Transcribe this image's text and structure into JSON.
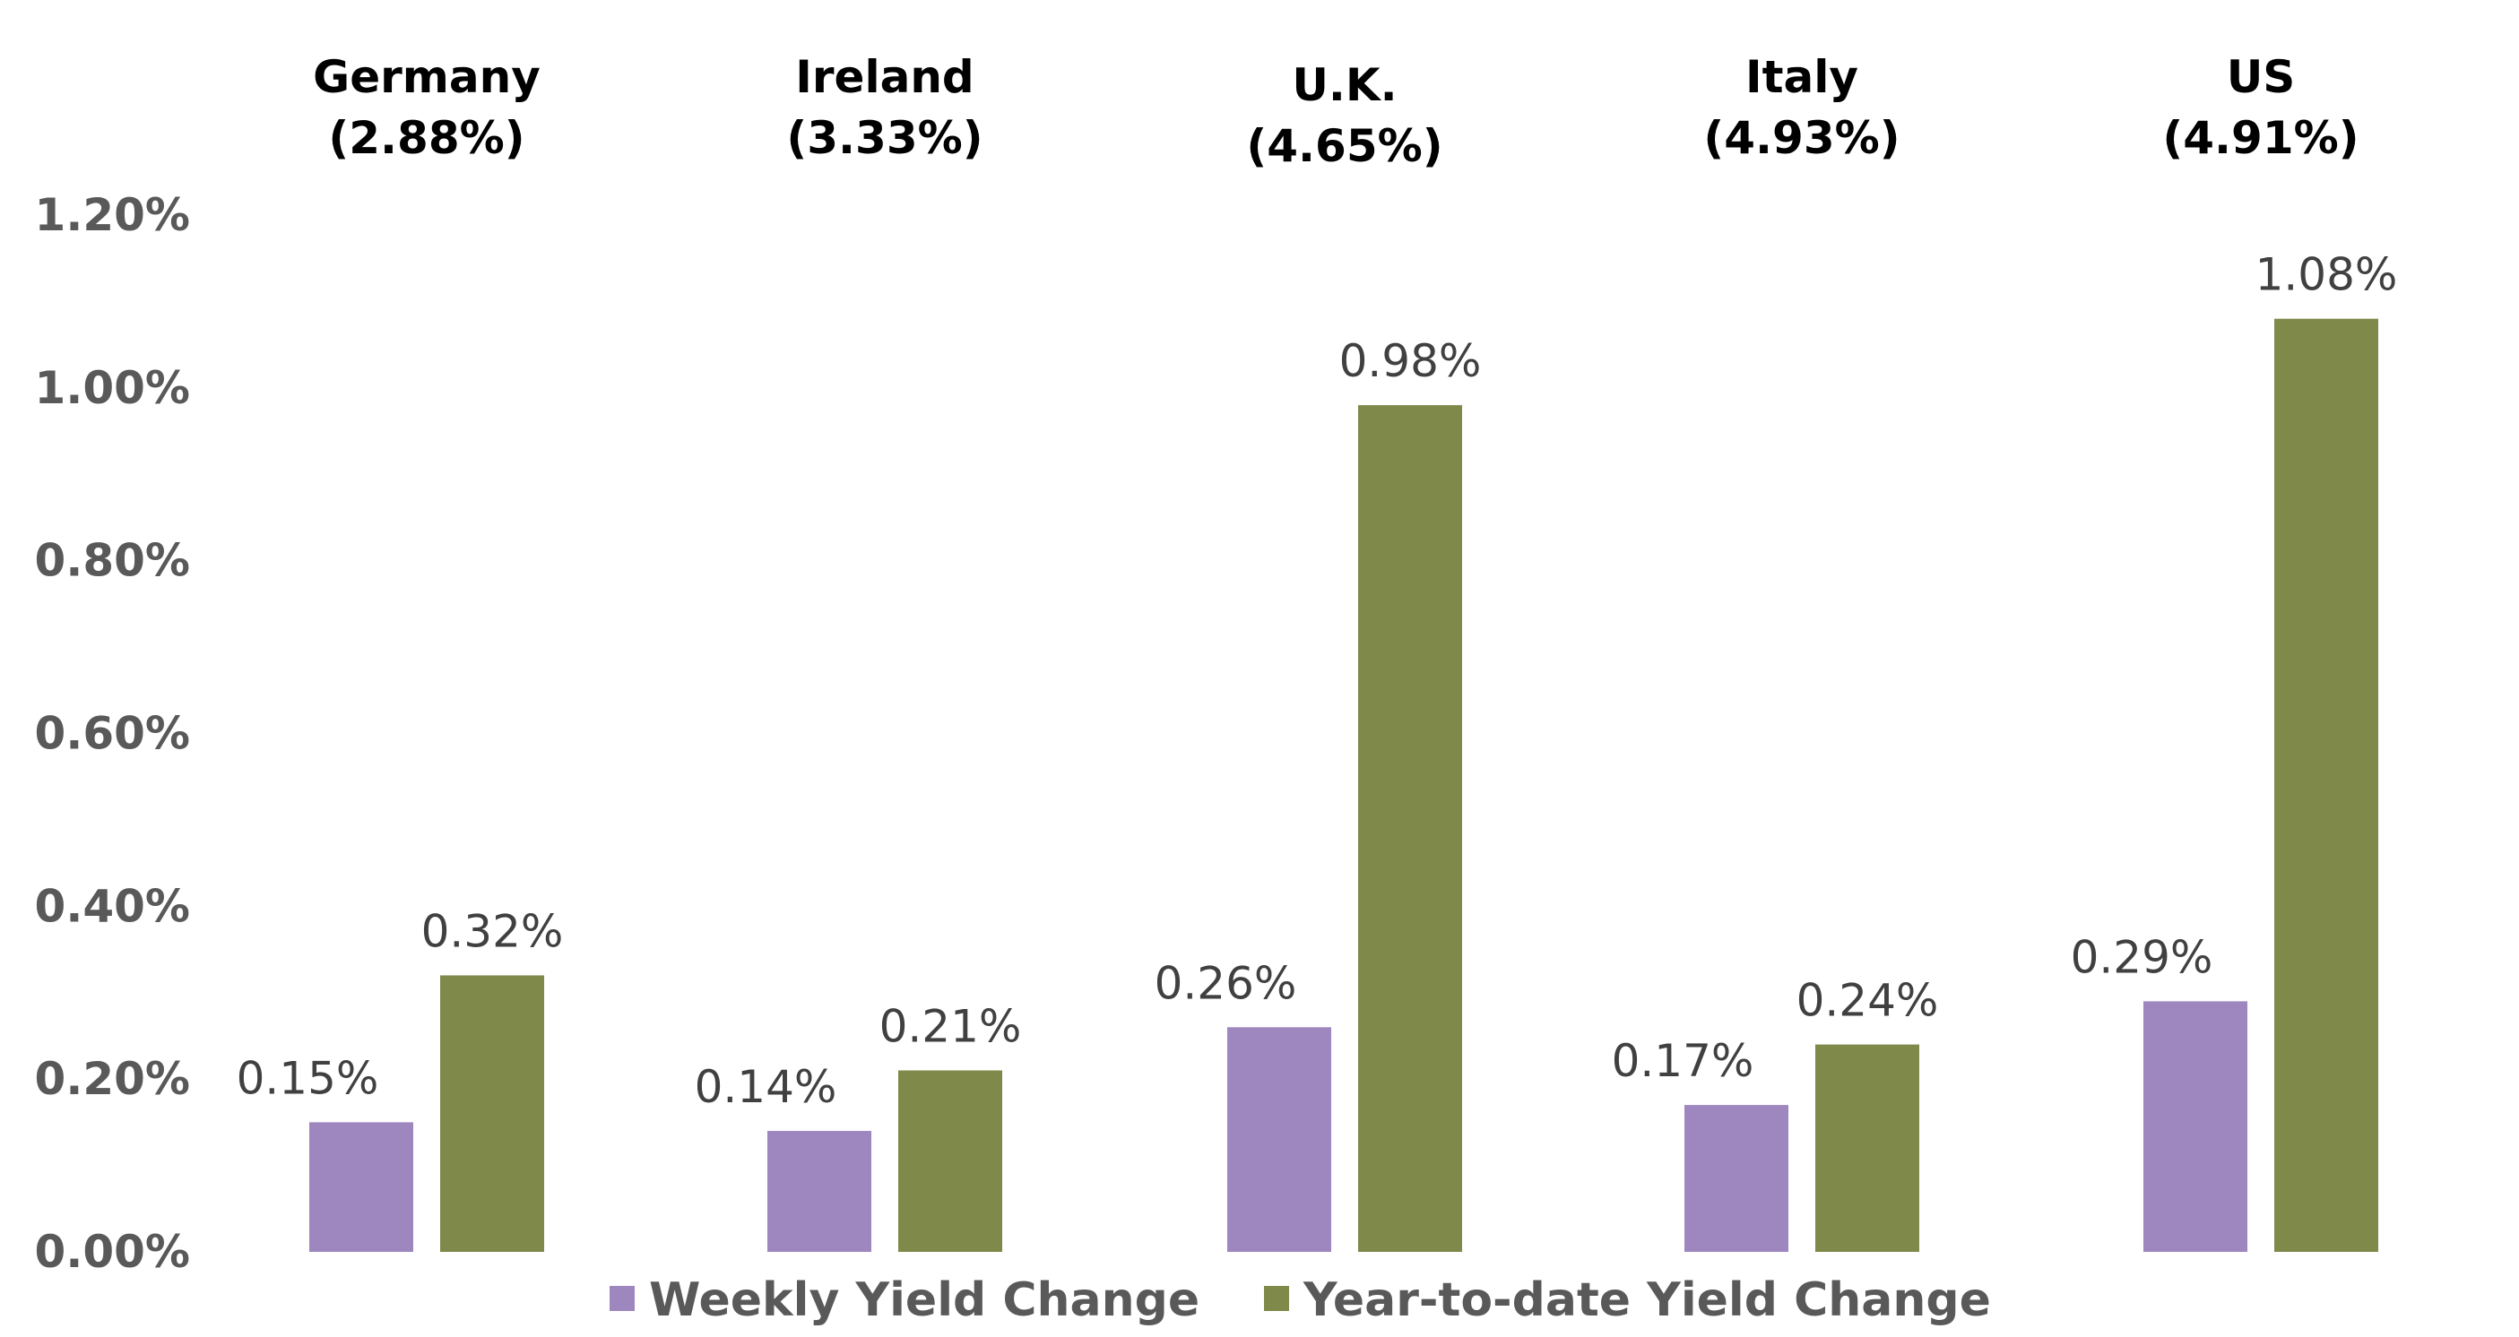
{
  "chart_data": {
    "type": "bar",
    "categories": [
      "Germany",
      "Ireland",
      "U.K.",
      "Italy",
      "US"
    ],
    "category_sublabels": [
      "(2.88%)",
      "(3.33%)",
      "(4.65%)",
      "(4.93%)",
      "(4.91%)"
    ],
    "series": [
      {
        "name": "Weekly Yield Change",
        "color": "#9e87bf",
        "values": [
          0.15,
          0.14,
          0.26,
          0.17,
          0.29
        ],
        "labels": [
          "0.15%",
          "0.14%",
          "0.26%",
          "0.17%",
          "0.29%"
        ]
      },
      {
        "name": "Year-to-date Yield Change",
        "color": "#7e894a",
        "values": [
          0.32,
          0.21,
          0.98,
          0.24,
          1.08
        ],
        "labels": [
          "0.32%",
          "0.21%",
          "0.98%",
          "0.24%",
          "1.08%"
        ]
      }
    ],
    "y_ticks": [
      "0.00%",
      "0.20%",
      "0.40%",
      "0.60%",
      "0.80%",
      "1.00%",
      "1.20%"
    ],
    "ylim": [
      0,
      1.2
    ],
    "grid": false,
    "legend_position": "bottom"
  }
}
